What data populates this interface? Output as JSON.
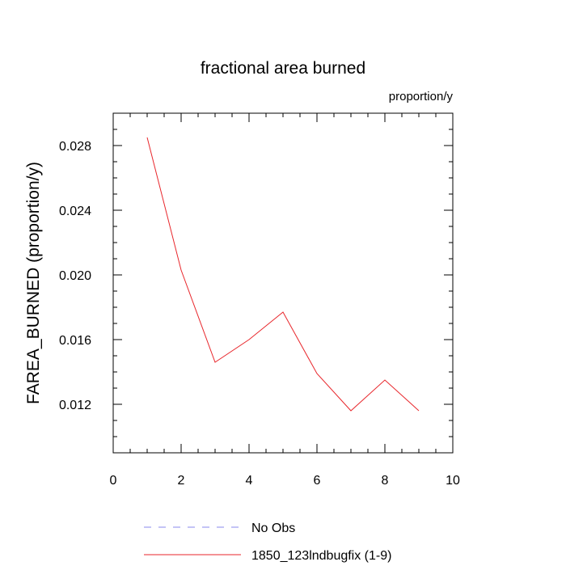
{
  "chart_data": {
    "type": "line",
    "title": "fractional area burned",
    "units": "proportion/y",
    "ylabel": "FAREA_BURNED  (proportion/y)",
    "xlabel": "",
    "xlim": [
      0,
      10
    ],
    "ylim": [
      0.009,
      0.03
    ],
    "xticks": [
      0,
      2,
      4,
      6,
      8,
      10
    ],
    "xtick_labels": [
      "0",
      "2",
      "4",
      "6",
      "8",
      "10"
    ],
    "yticks": [
      0.012,
      0.016,
      0.02,
      0.024,
      0.028
    ],
    "ytick_labels": [
      "0.012",
      "0.016",
      "0.020",
      "0.024",
      "0.028"
    ],
    "grid": false,
    "legend_position": "bottom",
    "series": [
      {
        "name": "1850_123lndbugfix (1-9)",
        "color": "#e8262b",
        "dash": "solid",
        "x": [
          1,
          2,
          3,
          4,
          5,
          6,
          7,
          8,
          9
        ],
        "values": [
          0.0285,
          0.0203,
          0.0146,
          0.016,
          0.0177,
          0.0139,
          0.0116,
          0.0135,
          0.0116
        ]
      },
      {
        "name": "No Obs",
        "color": "#8888ee",
        "dash": "dashed",
        "x": [],
        "values": []
      }
    ]
  }
}
